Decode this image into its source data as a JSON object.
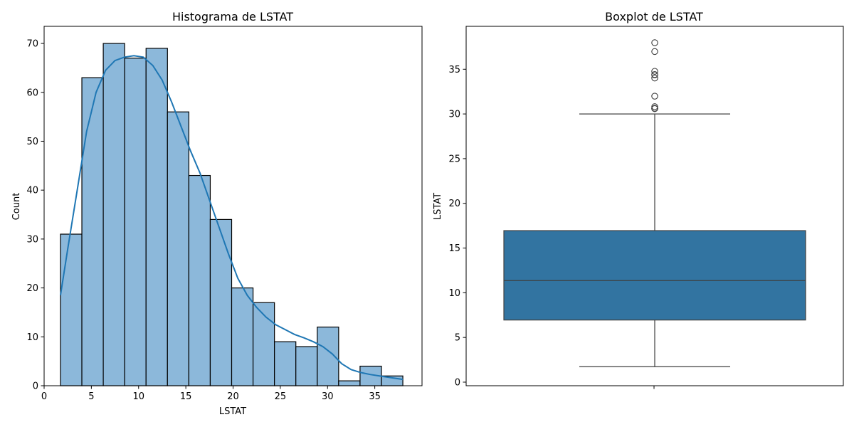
{
  "chart_data": [
    {
      "type": "bar",
      "subtype": "histogram",
      "title": "Histograma de LSTAT",
      "xlabel": "LSTAT",
      "ylabel": "Count",
      "xlim": [
        0,
        40
      ],
      "ylim": [
        0,
        73.5
      ],
      "xticks": [
        0,
        5,
        10,
        15,
        20,
        25,
        30,
        35
      ],
      "yticks": [
        0,
        10,
        20,
        30,
        40,
        50,
        60,
        70
      ],
      "bin_edges": [
        1.73,
        3.995,
        6.26,
        8.525,
        10.79,
        13.055,
        15.32,
        17.585,
        19.85,
        22.115,
        24.38,
        26.645,
        28.91,
        31.175,
        33.44,
        35.705,
        37.97
      ],
      "values": [
        31,
        63,
        70,
        67,
        69,
        56,
        43,
        34,
        20,
        17,
        9,
        8,
        12,
        1,
        4,
        2
      ],
      "kde": {
        "x": [
          1.73,
          2.5,
          3.5,
          4.5,
          5.5,
          6.5,
          7.5,
          8.5,
          9.5,
          10.5,
          11.5,
          12.5,
          13.5,
          14.5,
          15.5,
          16.5,
          17.5,
          18.5,
          19.5,
          20.5,
          21.5,
          22.5,
          23.5,
          24.5,
          25.5,
          26.5,
          27.5,
          28.5,
          29.5,
          30.5,
          31.5,
          32.5,
          33.5,
          34.5,
          35.5,
          36.5,
          37.97
        ],
        "y": [
          18.5,
          28,
          40,
          52,
          60,
          64.5,
          66.5,
          67.2,
          67.5,
          67.2,
          65.5,
          62.5,
          58,
          53,
          48,
          43.5,
          38,
          32.5,
          27,
          22,
          18.5,
          16,
          14,
          12.5,
          11.5,
          10.5,
          9.8,
          9,
          8,
          6.5,
          4.5,
          3.3,
          2.7,
          2.3,
          2,
          1.7,
          1.3
        ]
      },
      "colors": {
        "bar_fill": "#8cb8da",
        "bar_edge": "#000000",
        "kde_line": "#1f77b4"
      },
      "grid": false
    },
    {
      "type": "box",
      "title": "Boxplot de LSTAT",
      "xlabel": "",
      "ylabel": "LSTAT",
      "ylim": [
        -0.4,
        39.8
      ],
      "yticks": [
        0,
        5,
        10,
        15,
        20,
        25,
        30,
        35
      ],
      "box": {
        "whisker_low": 1.73,
        "q1": 6.95,
        "median": 11.36,
        "q3": 16.95,
        "whisker_high": 30.0
      },
      "outliers": [
        30.59,
        30.62,
        30.63,
        30.81,
        31.99,
        34.02,
        34.37,
        34.41,
        34.77,
        36.98,
        37.97
      ],
      "colors": {
        "box_fill": "#3274a1",
        "line": "#3f3f3f"
      },
      "grid": false
    }
  ]
}
